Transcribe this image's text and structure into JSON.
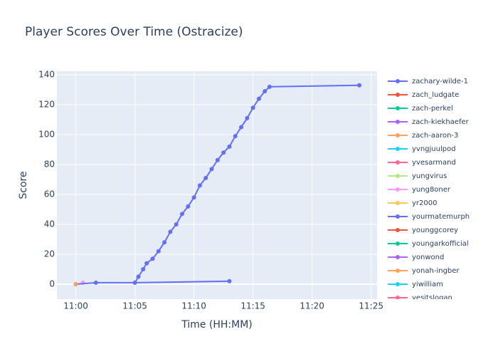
{
  "chart_data": {
    "type": "line",
    "title": "Player Scores Over Time (Ostracize)",
    "x_label": "Time (HH:MM)",
    "y_label": "Score",
    "xlim": [
      -1.6,
      25.5
    ],
    "ylim": [
      -10,
      142.4
    ],
    "xticks": [
      {
        "value": 0,
        "label": "11:00"
      },
      {
        "value": 5,
        "label": "11:05"
      },
      {
        "value": 10,
        "label": "11:10"
      },
      {
        "value": 15,
        "label": "11:15"
      },
      {
        "value": 20,
        "label": "11:20"
      },
      {
        "value": 25,
        "label": "11:25"
      }
    ],
    "yticks": [
      0,
      20,
      40,
      60,
      80,
      100,
      120,
      140
    ],
    "grid": true,
    "series": [
      {
        "name": "zachary-wilde-1",
        "color": "#636efa",
        "x": [
          5,
          5.3,
          5.7,
          6,
          6.5,
          7,
          7.5,
          8,
          8.5,
          9,
          9.5,
          10,
          10.5,
          11,
          11.5,
          12,
          12.5,
          13,
          13.5,
          14,
          14.5,
          15,
          15.5,
          16,
          16.4,
          24
        ],
        "values": [
          1,
          5,
          10,
          14,
          17,
          22,
          28,
          35,
          40,
          47,
          52,
          58,
          66,
          71,
          77,
          83,
          88,
          92,
          99,
          105,
          111,
          118,
          124,
          129,
          132,
          133
        ]
      },
      {
        "name": "zach_ludgate",
        "color": "#EF553B",
        "x": [],
        "values": []
      },
      {
        "name": "zach-perkel",
        "color": "#00cc96",
        "x": [],
        "values": []
      },
      {
        "name": "zach-kiekhaefer",
        "color": "#ab63fa",
        "x": [],
        "values": []
      },
      {
        "name": "zach-aaron-3",
        "color": "#FFA15A",
        "x": [
          0
        ],
        "values": [
          0
        ]
      },
      {
        "name": "yvngjuulpod",
        "color": "#19d3f3",
        "x": [],
        "values": []
      },
      {
        "name": "yvesarmand",
        "color": "#FF6692",
        "x": [],
        "values": []
      },
      {
        "name": "yungvirus",
        "color": "#B6E880",
        "x": [],
        "values": []
      },
      {
        "name": "yung8oner",
        "color": "#FF97FF",
        "x": [
          0.6
        ],
        "values": [
          1
        ]
      },
      {
        "name": "yr2000",
        "color": "#FECB52",
        "x": [
          0
        ],
        "values": [
          0
        ]
      },
      {
        "name": "yourmatemurph",
        "color": "#636efa",
        "x": [
          0,
          1.7,
          5,
          13
        ],
        "values": [
          0,
          1,
          1,
          2
        ]
      },
      {
        "name": "younggcorey",
        "color": "#EF553B",
        "x": [],
        "values": []
      },
      {
        "name": "youngarkofficial",
        "color": "#00cc96",
        "x": [],
        "values": []
      },
      {
        "name": "yonwond",
        "color": "#ab63fa",
        "x": [],
        "values": []
      },
      {
        "name": "yonah-ingber",
        "color": "#FFA15A",
        "x": [
          0
        ],
        "values": [
          0
        ]
      },
      {
        "name": "yiwilliam",
        "color": "#19d3f3",
        "x": [],
        "values": []
      },
      {
        "name": "yesitslogan",
        "color": "#FF6692",
        "x": [],
        "values": []
      }
    ]
  }
}
